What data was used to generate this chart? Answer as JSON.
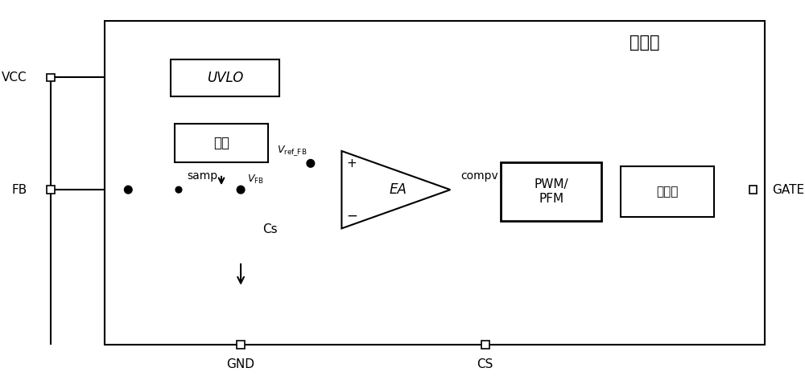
{
  "bg_color": "#ffffff",
  "line_color": "#000000",
  "lw": 1.5,
  "lw_thick": 2.0,
  "fig_width": 10.0,
  "fig_height": 4.68,
  "labels": {
    "controller": "控制器",
    "vcc": "VCC",
    "fb": "FB",
    "gnd": "GND",
    "cs": "CS",
    "gate": "GATE",
    "uvlo": "UVLO",
    "sample": "采样",
    "samp": "samp",
    "ea": "EA",
    "compv": "compv",
    "pwm_pfm": "PWM/\nPFM",
    "driver": "驱动器",
    "cs_cap": "Cs"
  }
}
